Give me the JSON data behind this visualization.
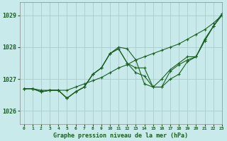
{
  "background_color": "#c8eaea",
  "grid_color": "#aacccc",
  "line_color": "#1a6020",
  "marker_color": "#1a6020",
  "title": "Graphe pression niveau de la mer (hPa)",
  "xlim": [
    -0.5,
    23
  ],
  "ylim": [
    1025.6,
    1029.4
  ],
  "yticks": [
    1026,
    1027,
    1028,
    1029
  ],
  "xticks": [
    0,
    1,
    2,
    3,
    4,
    5,
    6,
    7,
    8,
    9,
    10,
    11,
    12,
    13,
    14,
    15,
    16,
    17,
    18,
    19,
    20,
    21,
    22,
    23
  ],
  "series": [
    [
      1026.7,
      1026.7,
      1026.65,
      1026.65,
      1026.65,
      1026.65,
      1026.75,
      1026.85,
      1026.95,
      1027.05,
      1027.2,
      1027.35,
      1027.45,
      1027.6,
      1027.7,
      1027.8,
      1027.9,
      1028.0,
      1028.1,
      1028.25,
      1028.4,
      1028.55,
      1028.75,
      1029.0
    ],
    [
      1026.7,
      1026.7,
      1026.6,
      1026.65,
      1026.65,
      1026.4,
      1026.6,
      1026.75,
      1027.15,
      1027.35,
      1027.8,
      1028.0,
      1027.95,
      1027.6,
      1026.85,
      1026.75,
      1026.75,
      1027.0,
      1027.15,
      1027.55,
      1027.7,
      1028.2,
      1028.65,
      1029.0
    ],
    [
      1026.7,
      1026.7,
      1026.6,
      1026.65,
      1026.65,
      1026.4,
      1026.6,
      1026.75,
      1027.15,
      1027.35,
      1027.8,
      1027.95,
      1027.5,
      1027.2,
      1027.1,
      1026.75,
      1026.75,
      1027.25,
      1027.45,
      1027.6,
      1027.7,
      1028.2,
      1028.65,
      1029.0
    ],
    [
      1026.7,
      1026.7,
      1026.6,
      1026.65,
      1026.65,
      1026.4,
      1026.6,
      1026.75,
      1027.15,
      1027.35,
      1027.8,
      1027.95,
      1027.5,
      1027.35,
      1027.35,
      1026.75,
      1027.0,
      1027.3,
      1027.5,
      1027.7,
      1027.7,
      1028.25,
      1028.65,
      1029.05
    ]
  ]
}
